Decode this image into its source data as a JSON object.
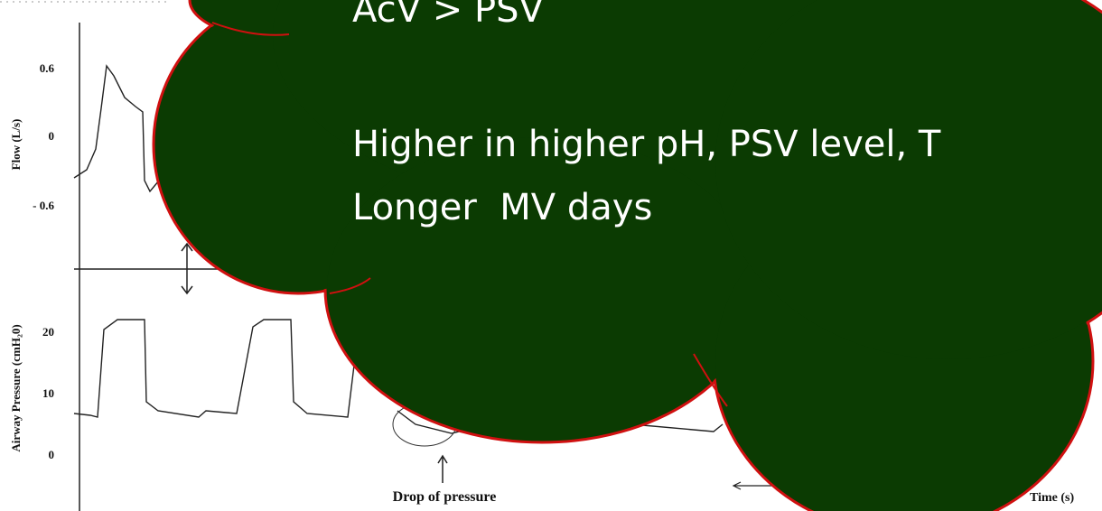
{
  "slide": {
    "bullets": [
      "AcV > PSV",
      "Higher in higher pH, PSV level, T",
      "Longer  MV days"
    ]
  },
  "figure": {
    "flow_axis_label": "Flow (L/s)",
    "flow_ticks": [
      "0.6",
      "0",
      "- 0.6"
    ],
    "pressure_axis_label": "Airway Pressure (cmH₂0)",
    "pressure_ticks": [
      "20",
      "10",
      "0"
    ],
    "annotation": "Drop of pressure",
    "time_label": "Time (s)"
  }
}
